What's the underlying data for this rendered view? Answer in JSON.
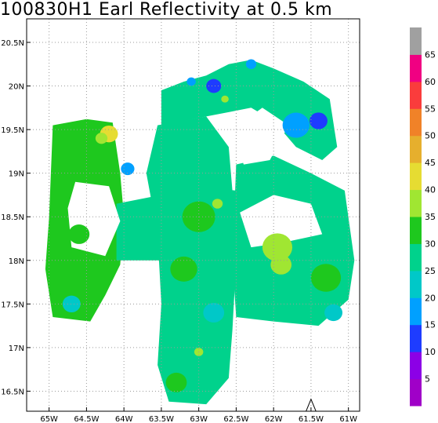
{
  "chart_data": {
    "type": "heatmap",
    "title": "100830H1  Earl Reflectivity at 0.5 km",
    "xlabel": "",
    "ylabel": "",
    "xlim": [
      -65.3,
      -60.85
    ],
    "ylim": [
      16.27,
      20.77
    ],
    "x_ticks": [
      -65,
      -64.5,
      -64,
      -63.5,
      -63,
      -62.5,
      -62,
      -61.5,
      -61
    ],
    "x_tick_labels": [
      "65W",
      "64.5W",
      "64W",
      "63.5W",
      "63W",
      "62.5W",
      "62W",
      "61.5W",
      "61W"
    ],
    "y_ticks": [
      16.5,
      17,
      17.5,
      18,
      18.5,
      19,
      19.5,
      20,
      20.5
    ],
    "y_tick_labels": [
      "16.5N",
      "17N",
      "17.5N",
      "18N",
      "18.5N",
      "19N",
      "19.5N",
      "20N",
      "20.5N"
    ],
    "grid": true,
    "colorbar": {
      "levels": [
        0,
        5,
        10,
        15,
        20,
        25,
        30,
        35,
        40,
        45,
        50,
        55,
        60,
        65,
        70
      ],
      "labels": [
        "5",
        "10",
        "15",
        "20",
        "25",
        "30",
        "35",
        "40",
        "45",
        "50",
        "55",
        "60",
        "65"
      ],
      "colors": [
        "#a000c8",
        "#8c00e6",
        "#1e3cff",
        "#00a0ff",
        "#00c8c8",
        "#00d28c",
        "#1ec81e",
        "#a0e632",
        "#e6dc32",
        "#e6af2d",
        "#f08228",
        "#fa3c3c",
        "#f00082",
        "#a0a0a0"
      ]
    },
    "regions": [
      {
        "name": "north-sw-ne-band",
        "polygon": [
          [
            -63.5,
            19.95
          ],
          [
            -63.2,
            20.05
          ],
          [
            -62.9,
            20.12
          ],
          [
            -62.6,
            20.25
          ],
          [
            -62.3,
            20.3
          ],
          [
            -62.0,
            20.2
          ],
          [
            -61.6,
            20.05
          ],
          [
            -61.25,
            19.85
          ],
          [
            -61.15,
            19.3
          ],
          [
            -61.35,
            19.15
          ],
          [
            -61.7,
            19.3
          ],
          [
            -62.0,
            19.6
          ],
          [
            -62.3,
            19.75
          ],
          [
            -62.6,
            19.7
          ],
          [
            -62.9,
            19.65
          ],
          [
            -63.2,
            19.6
          ],
          [
            -63.5,
            19.55
          ]
        ],
        "value": 27
      },
      {
        "name": "west-box",
        "polygon": [
          [
            -64.95,
            19.55
          ],
          [
            -64.5,
            19.62
          ],
          [
            -64.15,
            19.58
          ],
          [
            -64.05,
            19.0
          ],
          [
            -64.0,
            18.5
          ],
          [
            -64.05,
            17.95
          ],
          [
            -64.25,
            17.6
          ],
          [
            -64.45,
            17.3
          ],
          [
            -64.95,
            17.35
          ],
          [
            -65.05,
            17.9
          ],
          [
            -65.0,
            18.5
          ]
        ],
        "value": 30
      },
      {
        "name": "central-column",
        "polygon": [
          [
            -63.55,
            19.55
          ],
          [
            -62.9,
            19.65
          ],
          [
            -62.6,
            19.3
          ],
          [
            -62.55,
            18.8
          ],
          [
            -62.5,
            18.0
          ],
          [
            -62.55,
            17.2
          ],
          [
            -62.6,
            16.65
          ],
          [
            -62.9,
            16.35
          ],
          [
            -63.4,
            16.38
          ],
          [
            -63.55,
            16.8
          ],
          [
            -63.5,
            17.5
          ],
          [
            -63.55,
            18.3
          ],
          [
            -63.7,
            19.0
          ]
        ],
        "value": 28
      },
      {
        "name": "east-block",
        "polygon": [
          [
            -62.5,
            19.1
          ],
          [
            -62.0,
            19.2
          ],
          [
            -61.5,
            19.0
          ],
          [
            -61.05,
            18.8
          ],
          [
            -60.92,
            18.0
          ],
          [
            -61.0,
            17.55
          ],
          [
            -61.4,
            17.25
          ],
          [
            -62.0,
            17.3
          ],
          [
            -62.5,
            17.35
          ],
          [
            -62.55,
            18.0
          ]
        ],
        "value": 27
      },
      {
        "name": "cross-arm",
        "polygon": [
          [
            -64.1,
            18.65
          ],
          [
            -63.5,
            18.75
          ],
          [
            -63.0,
            18.85
          ],
          [
            -62.5,
            18.8
          ],
          [
            -62.0,
            18.75
          ],
          [
            -62.0,
            18.2
          ],
          [
            -62.5,
            18.1
          ],
          [
            -63.0,
            18.05
          ],
          [
            -63.5,
            18.0
          ],
          [
            -64.1,
            18.0
          ]
        ],
        "value": 29
      }
    ],
    "holes": [
      {
        "name": "hole-west",
        "polygon": [
          [
            -64.65,
            18.9
          ],
          [
            -64.2,
            18.85
          ],
          [
            -64.05,
            18.45
          ],
          [
            -64.25,
            18.05
          ],
          [
            -64.7,
            18.15
          ],
          [
            -64.75,
            18.6
          ]
        ],
        "value": null
      },
      {
        "name": "hole-north",
        "polygon": [
          [
            -62.55,
            19.5
          ],
          [
            -62.15,
            19.75
          ],
          [
            -61.8,
            19.55
          ],
          [
            -62.05,
            19.15
          ],
          [
            -62.4,
            19.1
          ]
        ],
        "value": null
      },
      {
        "name": "hole-east-notch",
        "polygon": [
          [
            -62.45,
            18.55
          ],
          [
            -62.0,
            18.75
          ],
          [
            -61.5,
            18.65
          ],
          [
            -61.35,
            18.3
          ],
          [
            -61.9,
            18.2
          ],
          [
            -62.3,
            18.15
          ]
        ],
        "value": null
      }
    ],
    "blobs": [
      {
        "lon": -64.2,
        "lat": 19.45,
        "r": 0.12,
        "value": 42
      },
      {
        "lon": -64.3,
        "lat": 19.4,
        "r": 0.08,
        "value": 37
      },
      {
        "lon": -62.75,
        "lat": 18.65,
        "r": 0.07,
        "value": 37
      },
      {
        "lon": -61.95,
        "lat": 18.15,
        "r": 0.2,
        "value": 37
      },
      {
        "lon": -61.9,
        "lat": 17.95,
        "r": 0.14,
        "value": 37
      },
      {
        "lon": -63.0,
        "lat": 16.95,
        "r": 0.06,
        "value": 37
      },
      {
        "lon": -62.65,
        "lat": 19.85,
        "r": 0.05,
        "value": 37
      },
      {
        "lon": -63.1,
        "lat": 20.05,
        "r": 0.06,
        "value": 17
      },
      {
        "lon": -62.8,
        "lat": 20.0,
        "r": 0.1,
        "value": 13
      },
      {
        "lon": -62.3,
        "lat": 20.25,
        "r": 0.07,
        "value": 17
      },
      {
        "lon": -61.4,
        "lat": 19.6,
        "r": 0.12,
        "value": 13
      },
      {
        "lon": -61.7,
        "lat": 19.55,
        "r": 0.18,
        "value": 17
      },
      {
        "lon": -63.95,
        "lat": 19.05,
        "r": 0.09,
        "value": 17
      },
      {
        "lon": -64.6,
        "lat": 18.3,
        "r": 0.14,
        "value": 33
      },
      {
        "lon": -63.2,
        "lat": 17.9,
        "r": 0.18,
        "value": 33
      },
      {
        "lon": -63.0,
        "lat": 18.5,
        "r": 0.22,
        "value": 33
      },
      {
        "lon": -61.3,
        "lat": 17.8,
        "r": 0.2,
        "value": 33
      },
      {
        "lon": -64.7,
        "lat": 17.5,
        "r": 0.12,
        "value": 22
      },
      {
        "lon": -61.2,
        "lat": 17.4,
        "r": 0.12,
        "value": 22
      },
      {
        "lon": -63.3,
        "lat": 16.6,
        "r": 0.14,
        "value": 33
      },
      {
        "lon": -62.8,
        "lat": 17.4,
        "r": 0.14,
        "value": 22
      }
    ],
    "annotations": [
      {
        "name": "track-marker",
        "lon": -61.5,
        "lat": 16.3,
        "shape": "caret"
      }
    ]
  }
}
